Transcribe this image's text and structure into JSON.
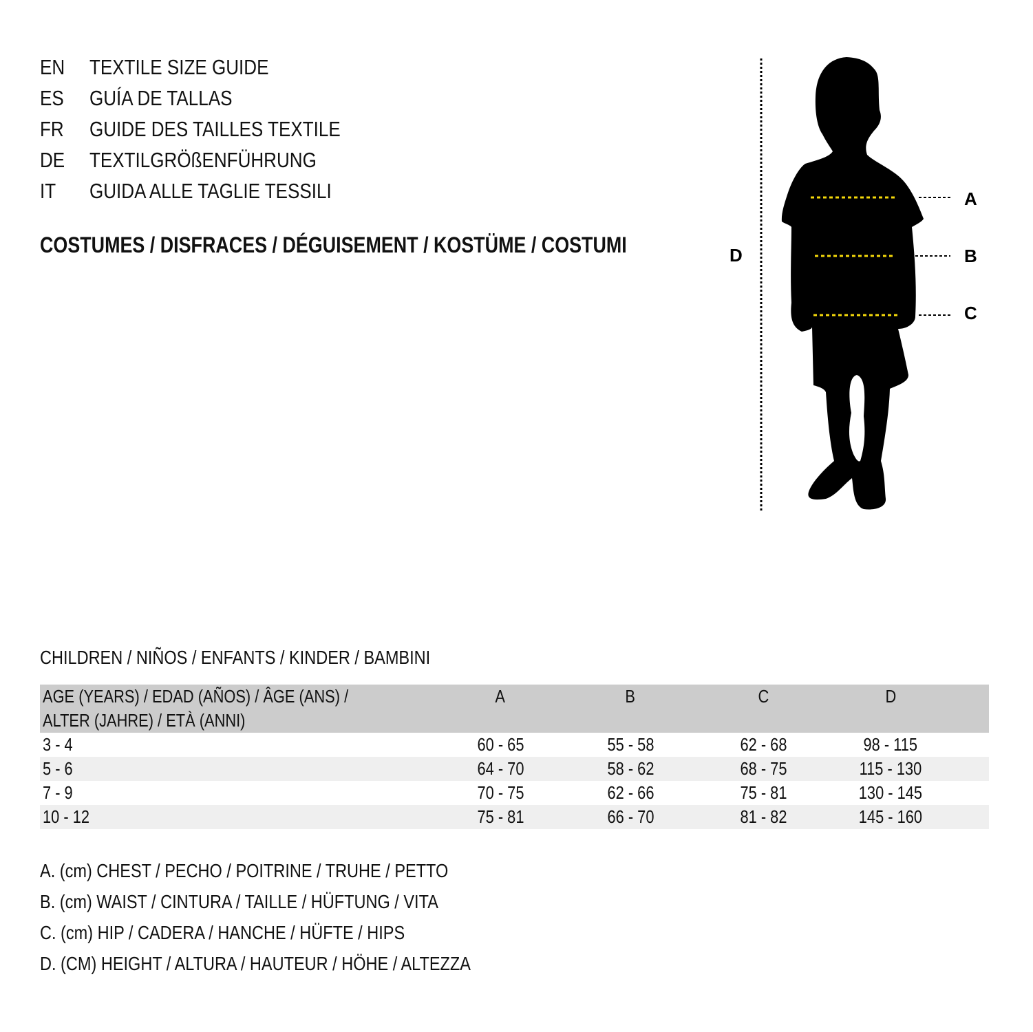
{
  "guide_titles": [
    {
      "code": "EN",
      "text": "TEXTILE SIZE GUIDE"
    },
    {
      "code": "ES",
      "text": "GUÍA DE TALLAS"
    },
    {
      "code": "FR",
      "text": "GUIDE DES TAILLES TEXTILE"
    },
    {
      "code": "DE",
      "text": "TEXTILGRÖßENFÜHRUNG"
    },
    {
      "code": "IT",
      "text": "GUIDA ALLE TAGLIE TESSILI"
    }
  ],
  "category": "COSTUMES / DISFRACES / DÉGUISEMENT / KOSTÜME / COSTUMI",
  "figure": {
    "labels": {
      "a": "A",
      "b": "B",
      "c": "C",
      "d": "D"
    },
    "measure_line_color": "#f5d90a",
    "silhouette_color": "#000000"
  },
  "section": "CHILDREN / NIÑOS / ENFANTS / KINDER / BAMBINI",
  "table": {
    "header_line1": "AGE (YEARS) / EDAD (AÑOS) / ÂGE (ANS) /",
    "header_line2": "ALTER (JAHRE) / ETÀ (ANNI)",
    "columns": [
      "A",
      "B",
      "C",
      "D"
    ],
    "rows": [
      {
        "age": "3 - 4",
        "values": [
          "60 - 65",
          "55 - 58",
          "62 - 68",
          "98 - 115"
        ]
      },
      {
        "age": "5 - 6",
        "values": [
          "64 - 70",
          "58 - 62",
          "68 - 75",
          "115 - 130"
        ]
      },
      {
        "age": "7 - 9",
        "values": [
          "70 - 75",
          "62 - 66",
          "75 - 81",
          "130 - 145"
        ]
      },
      {
        "age": "10 - 12",
        "values": [
          "75 - 81",
          "66 - 70",
          "81 - 82",
          "145 - 160"
        ]
      }
    ],
    "header_bg": "#cccccc",
    "stripe_bg": "#efefef"
  },
  "legend": [
    "A. (cm) CHEST / PECHO / POITRINE / TRUHE / PETTO",
    "B. (cm) WAIST / CINTURA / TAILLE / HÜFTUNG / VITA",
    "C. (cm) HIP / CADERA / HANCHE / HÜFTE / HIPS",
    "D. (CM) HEIGHT / ALTURA / HAUTEUR / HÖHE / ALTEZZA"
  ]
}
